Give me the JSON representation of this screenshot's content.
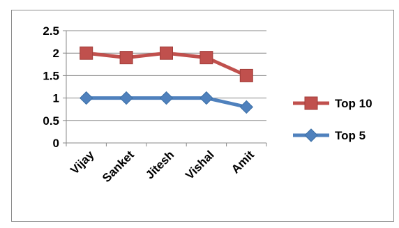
{
  "chart_data": {
    "type": "line",
    "categories": [
      "Vijay",
      "Sanket",
      "Jitesh",
      "Vishal",
      "Amit"
    ],
    "series": [
      {
        "name": "Top 10",
        "values": [
          2.0,
          1.9,
          2.0,
          1.9,
          1.5
        ],
        "color": "#c0504d",
        "marker": "square"
      },
      {
        "name": "Top 5",
        "values": [
          1.0,
          1.0,
          1.0,
          1.0,
          0.8
        ],
        "color": "#4f81bd",
        "marker": "diamond"
      }
    ],
    "yticks": [
      "0",
      "0.5",
      "1",
      "1.5",
      "2",
      "2.5"
    ],
    "ylim": [
      0,
      2.5
    ],
    "grid": true,
    "legend_position": "right",
    "title": "",
    "xlabel": "",
    "ylabel": ""
  }
}
